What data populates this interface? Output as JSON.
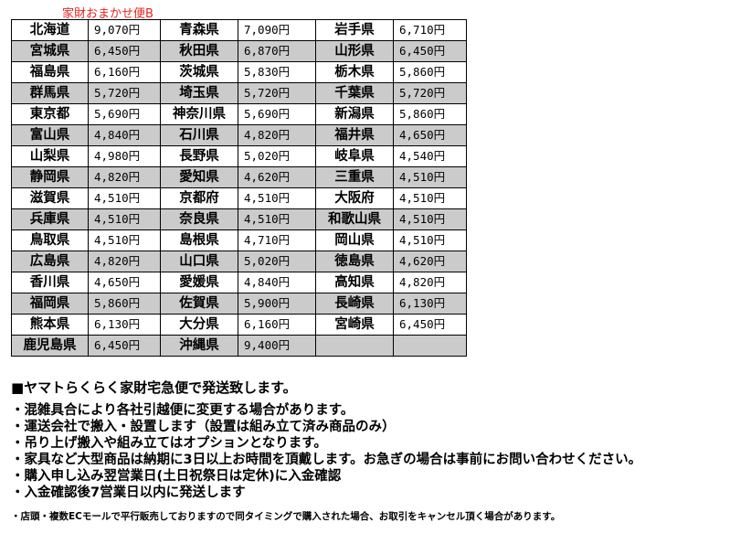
{
  "title": "家財おまかせ便B",
  "rows": [
    [
      [
        "北海道",
        "9,070円"
      ],
      [
        "青森県",
        "7,090円"
      ],
      [
        "岩手県",
        "6,710円"
      ]
    ],
    [
      [
        "宮城県",
        "6,450円"
      ],
      [
        "秋田県",
        "6,870円"
      ],
      [
        "山形県",
        "6,450円"
      ]
    ],
    [
      [
        "福島県",
        "6,160円"
      ],
      [
        "茨城県",
        "5,830円"
      ],
      [
        "栃木県",
        "5,860円"
      ]
    ],
    [
      [
        "群馬県",
        "5,720円"
      ],
      [
        "埼玉県",
        "5,720円"
      ],
      [
        "千葉県",
        "5,720円"
      ]
    ],
    [
      [
        "東京都",
        "5,690円"
      ],
      [
        "神奈川県",
        "5,690円"
      ],
      [
        "新潟県",
        "5,860円"
      ]
    ],
    [
      [
        "富山県",
        "4,840円"
      ],
      [
        "石川県",
        "4,820円"
      ],
      [
        "福井県",
        "4,650円"
      ]
    ],
    [
      [
        "山梨県",
        "4,980円"
      ],
      [
        "長野県",
        "5,020円"
      ],
      [
        "岐阜県",
        "4,540円"
      ]
    ],
    [
      [
        "静岡県",
        "4,820円"
      ],
      [
        "愛知県",
        "4,620円"
      ],
      [
        "三重県",
        "4,510円"
      ]
    ],
    [
      [
        "滋賀県",
        "4,510円"
      ],
      [
        "京都府",
        "4,510円"
      ],
      [
        "大阪府",
        "4,510円"
      ]
    ],
    [
      [
        "兵庫県",
        "4,510円"
      ],
      [
        "奈良県",
        "4,510円"
      ],
      [
        "和歌山県",
        "4,510円"
      ]
    ],
    [
      [
        "鳥取県",
        "4,510円"
      ],
      [
        "島根県",
        "4,710円"
      ],
      [
        "岡山県",
        "4,510円"
      ]
    ],
    [
      [
        "広島県",
        "4,820円"
      ],
      [
        "山口県",
        "5,020円"
      ],
      [
        "徳島県",
        "4,620円"
      ]
    ],
    [
      [
        "香川県",
        "4,650円"
      ],
      [
        "愛媛県",
        "4,840円"
      ],
      [
        "高知県",
        "4,820円"
      ]
    ],
    [
      [
        "福岡県",
        "5,860円"
      ],
      [
        "佐賀県",
        "5,900円"
      ],
      [
        "長崎県",
        "6,130円"
      ]
    ],
    [
      [
        "熊本県",
        "6,130円"
      ],
      [
        "大分県",
        "6,160円"
      ],
      [
        "宮崎県",
        "6,450円"
      ]
    ],
    [
      [
        "鹿児島県",
        "6,450円"
      ],
      [
        "沖縄県",
        "9,400円"
      ],
      [
        "",
        ""
      ]
    ]
  ],
  "notes": {
    "heading": "■ヤマトらくらく家財宅急便で発送致します。",
    "lines": [
      "・混雑具合により各社引越便に変更する場合があります。",
      "・運送会社で搬入・設置します（設置は組み立て済み商品のみ）",
      "・吊り上げ搬入や組み立てはオプションとなります。",
      "・家具など大型商品は納期に3日以上お時間を頂戴します。お急ぎの場合は事前にお問い合わせください。",
      "・購入申し込み翌営業日(土日祝祭日は定休)に入金確認",
      "・入金確認後7営業日以内に発送します"
    ],
    "small": "・店頭・複数ECモールで平行販売しておりますので同タイミングで購入された場合、お取引をキャンセル頂く場合があります。"
  },
  "colors": {
    "title": "#e8231f",
    "stripe": "#cbcbcb"
  }
}
